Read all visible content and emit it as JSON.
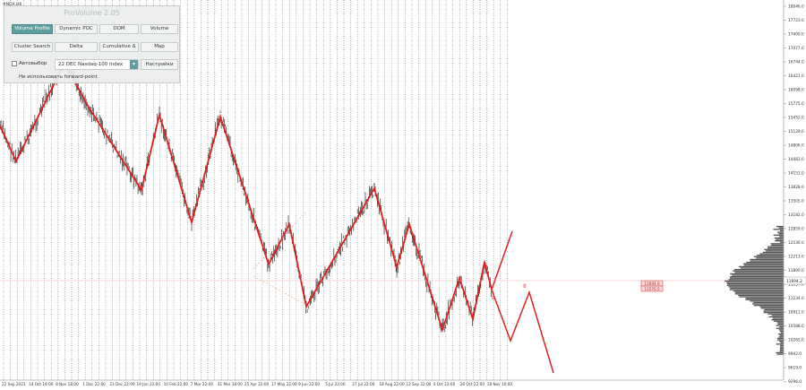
{
  "window": {
    "symbol_label": "#NDX,H6"
  },
  "panel": {
    "title": "ProVolume 2.05",
    "buttons": [
      {
        "label": "Volume Profile",
        "active": true
      },
      {
        "label": "Dynamic POC",
        "active": false
      },
      {
        "label": "DOM",
        "active": false
      },
      {
        "label": "Volume",
        "active": false
      },
      {
        "label": "Cluster Search",
        "active": false
      },
      {
        "label": "Delta",
        "active": false
      },
      {
        "label": "Cumulative Δ",
        "active": false
      },
      {
        "label": "Map",
        "active": false
      }
    ],
    "auto_select_label": "Автовыбор",
    "instrument_value": "22 DEC Nasdaq-100 Index",
    "settings_label": "Настройки",
    "forward_point_label": "Не использовать forward-point"
  },
  "chart_data": {
    "type": "line",
    "price_axis_labels": [
      "18046.0",
      "17723.0",
      "17400.0",
      "17077.0",
      "16744.0",
      "16421.0",
      "16098.0",
      "15775.0",
      "15452.0",
      "15129.0",
      "14806.0",
      "14483.0",
      "14151.0",
      "13828.0",
      "13505.0",
      "13182.0",
      "12859.0",
      "12536.0",
      "12213.0",
      "11890.0",
      "11557.0",
      "11234.0",
      "10911.0",
      "10588.0",
      "10265.0",
      "9942.0",
      "9619.0",
      "9296.0"
    ],
    "time_axis_labels": [
      "22 Sep 2021",
      "14 Oct 18:00",
      "8 Nov 18:00",
      "1 Dec 22:00",
      "23 Dec 22:00",
      "19 Jan 22:00",
      "10 Feb 22:00",
      "7 Mar 22:00",
      "31 Mar 18:00",
      "25 Apr 22:00",
      "17 May 22:00",
      "9 Jun 22:00",
      "5 Jul 22:00",
      "27 Jul 22:00",
      "18 Aug 22:00",
      "12 Sep 22:00",
      "4 Oct 22:00",
      "26 Oct 22:00",
      "18 Nov 10:00"
    ],
    "current_price": "11694.2",
    "level_boxes": [
      "11694.9",
      "11576.5"
    ],
    "wave_labels": [
      "8",
      "8"
    ],
    "colors": {
      "zigzag": "#e02020",
      "bars": "#111111",
      "grid": "#666666",
      "profile": "#555555",
      "level_box": "#e05050"
    },
    "zigzag_pattern": "red zigzag waves with forward projection"
  }
}
